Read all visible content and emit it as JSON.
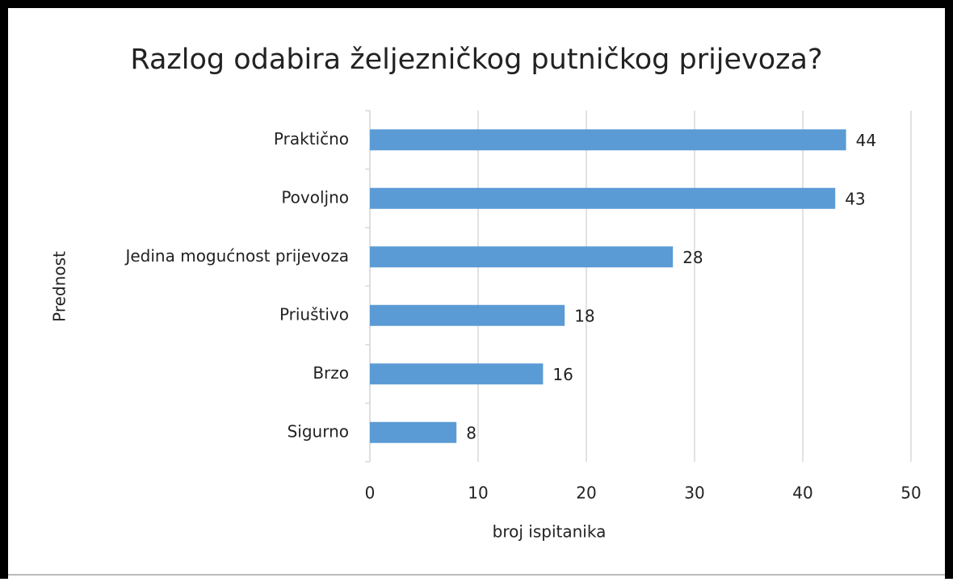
{
  "chart_data": {
    "type": "barh",
    "title": "Razlog odabira željezničkog putničkog prijevoza?",
    "categories": [
      "Praktično",
      "Povoljno",
      "Jedina mogućnost prijevoza",
      "Priuštivo",
      "Brzo",
      "Sigurno"
    ],
    "values": [
      44,
      43,
      28,
      18,
      16,
      8
    ],
    "color": "#5b9bd5",
    "xlabel": "broj ispitanika",
    "ylabel": "Prednost",
    "xlim": [
      0,
      50
    ],
    "xticks": [
      0,
      10,
      20,
      30,
      40,
      50
    ],
    "grid": true
  }
}
